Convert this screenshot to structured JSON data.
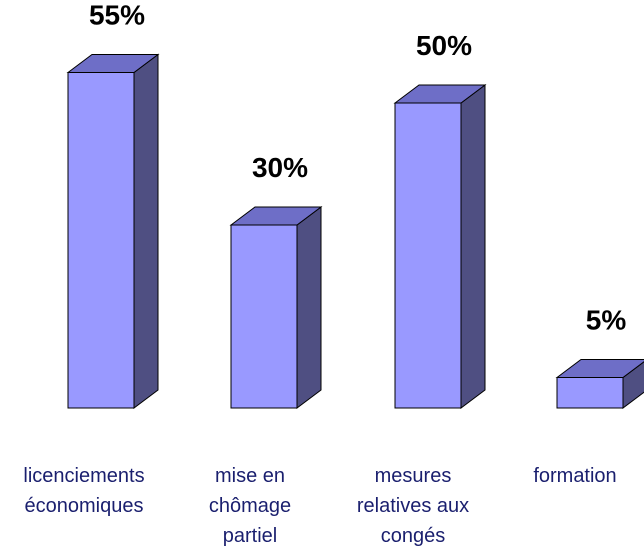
{
  "chart_data": {
    "type": "bar",
    "style": "3d-column",
    "categories": [
      [
        "licenciements",
        "économiques"
      ],
      [
        "mise en",
        "chômage",
        "partiel"
      ],
      [
        "mesures",
        "relatives aux",
        "congés"
      ],
      [
        "formation"
      ]
    ],
    "values": [
      55,
      30,
      50,
      5
    ],
    "data_labels": [
      "55%",
      "30%",
      "50%",
      "5%"
    ],
    "title": "",
    "xlabel": "",
    "ylabel": "",
    "ylim": [
      0,
      60
    ],
    "grid": false,
    "legend": "none",
    "colors": {
      "front": "#9999ff",
      "top": "#6e6ec7",
      "side": "#4f4f82",
      "edge": "#000000",
      "label_text": "#000000",
      "category_text": "#1a1f6e"
    }
  }
}
